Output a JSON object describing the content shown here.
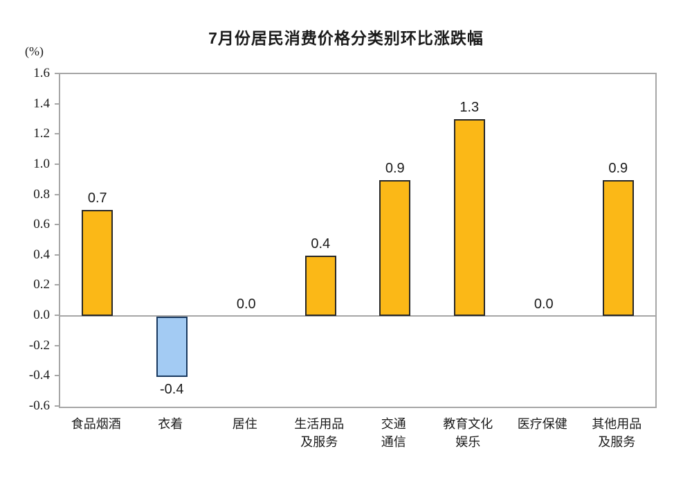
{
  "chart_data": {
    "type": "bar",
    "title": "7月份居民消费价格分类别环比涨跌幅",
    "unit_label": "(%)",
    "categories": [
      "食品烟酒",
      "衣着",
      "居住",
      "生活用品\n及服务",
      "交通\n通信",
      "教育文化\n娱乐",
      "医疗保健",
      "其他用品\n及服务"
    ],
    "values": [
      0.7,
      -0.4,
      0.0,
      0.4,
      0.9,
      1.3,
      0.0,
      0.9
    ],
    "value_labels": [
      "0.7",
      "-0.4",
      "0.0",
      "0.4",
      "0.9",
      "1.3",
      "0.0",
      "0.9"
    ],
    "xlabel": "",
    "ylabel": "(%)",
    "ylim": [
      -0.6,
      1.6
    ],
    "ytick_labels": [
      "1.6",
      "1.4",
      "1.2",
      "1.0",
      "0.8",
      "0.6",
      "0.4",
      "0.2",
      "0.0",
      "-0.2",
      "-0.4",
      "-0.6"
    ],
    "grid": false,
    "legend": "none",
    "colors": {
      "bar_positive_fill": "#FBB817",
      "bar_positive_border": "#262626",
      "bar_negative_fill": "#A3CBF3",
      "bar_negative_border": "#17375E",
      "axis_line": "#A6A6A6",
      "text": "#1A1A1A"
    }
  }
}
